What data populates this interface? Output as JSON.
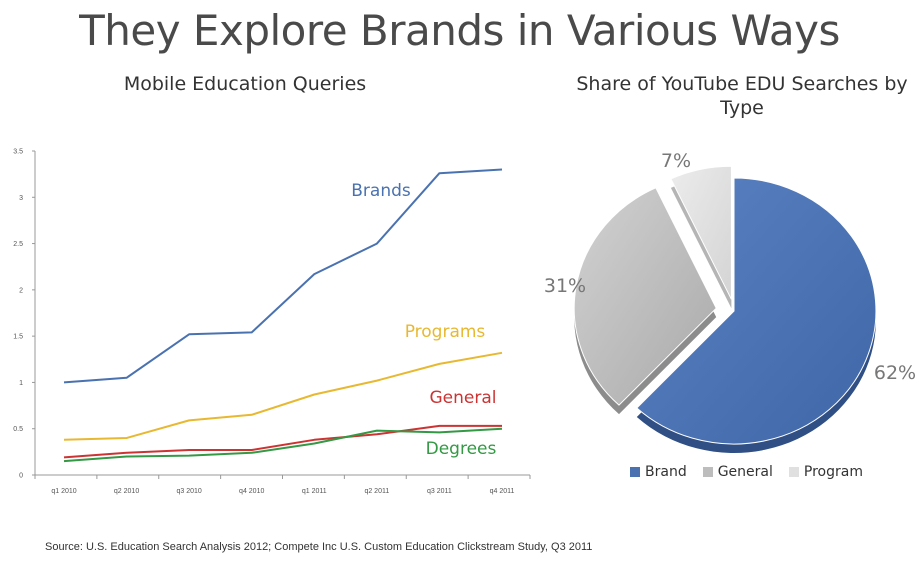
{
  "title": "They Explore Brands in Various Ways",
  "source": "Source: U.S. Education Search Analysis 2012; Compete Inc U.S. Custom Education Clickstream Study, Q3 2011",
  "chart_data": [
    {
      "type": "line",
      "title": "Mobile Education Queries",
      "x": [
        "q1 2010",
        "q2 2010",
        "q3 2010",
        "q4 2010",
        "q1 2011",
        "q2 2011",
        "q3 2011",
        "q4 2011"
      ],
      "ylim": [
        0,
        3.5
      ],
      "yticks": [
        "0",
        "0.5",
        "1",
        "1.5",
        "2",
        "2.5",
        "3",
        "3.5"
      ],
      "grid": false,
      "series": [
        {
          "name": "Brands",
          "color": "#4a72b0",
          "values": [
            1.0,
            1.05,
            1.52,
            1.54,
            2.17,
            2.5,
            3.26,
            3.3
          ]
        },
        {
          "name": "Programs",
          "color": "#e8b830",
          "values": [
            0.38,
            0.4,
            0.59,
            0.65,
            0.87,
            1.02,
            1.2,
            1.32
          ]
        },
        {
          "name": "General",
          "color": "#cc3333",
          "values": [
            0.19,
            0.24,
            0.27,
            0.27,
            0.38,
            0.44,
            0.53,
            0.53
          ]
        },
        {
          "name": "Degrees",
          "color": "#339944",
          "values": [
            0.15,
            0.2,
            0.21,
            0.24,
            0.34,
            0.48,
            0.46,
            0.5
          ]
        }
      ]
    },
    {
      "type": "pie",
      "title": "Share of YouTube EDU Searches by Type",
      "legend_position": "bottom",
      "slices": [
        {
          "label": "Brand",
          "value": 62,
          "display": "62%",
          "color": "#4a72b0"
        },
        {
          "label": "General",
          "value": 31,
          "display": "31%",
          "color": "#bdbdbd"
        },
        {
          "label": "Program",
          "value": 7,
          "display": "7%",
          "color": "#e0e0e0"
        }
      ]
    }
  ]
}
